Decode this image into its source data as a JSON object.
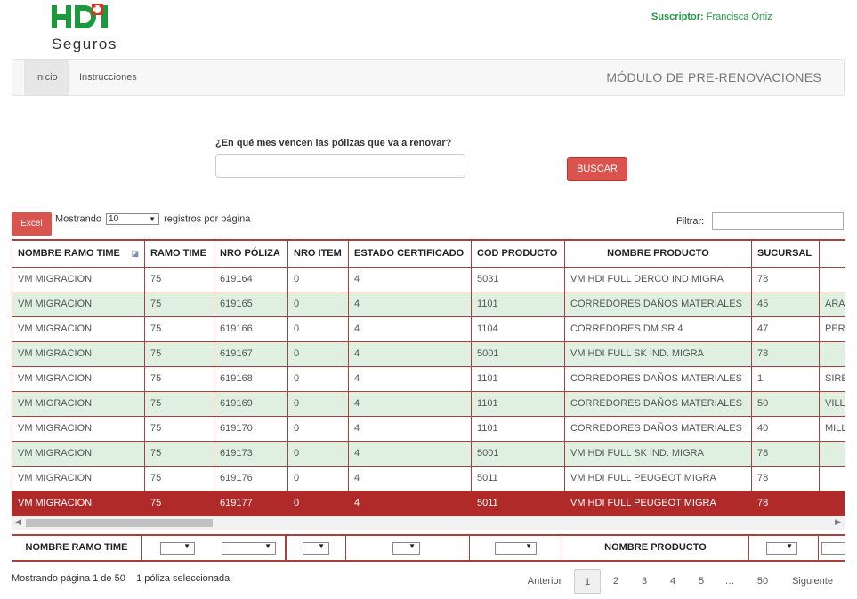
{
  "brand": {
    "logo_text": "HDI",
    "sub": "Seguros"
  },
  "subscriber": {
    "label": "Suscriptor:",
    "name": "Francisca Ortiz"
  },
  "nav": {
    "items": [
      {
        "label": "Inicio"
      },
      {
        "label": "Instrucciones"
      }
    ],
    "title": "MÓDULO DE PRE-RENOVACIONES"
  },
  "search": {
    "question": "¿En qué mes vencen las pólizas que va a renovar?",
    "value": "",
    "button": "BUSCAR"
  },
  "controls": {
    "excel": "Excel",
    "showing_pre": "Mostrando",
    "page_size": "10",
    "showing_post": "registros por página",
    "filter_label": "Filtrar:"
  },
  "table": {
    "columns": [
      "NOMBRE RAMO TIME",
      "RAMO TIME",
      "NRO PÓLIZA",
      "NRO ITEM",
      "ESTADO CERTIFICADO",
      "COD PRODUCTO",
      "NOMBRE PRODUCTO",
      "SUCURSAL",
      ""
    ],
    "rows": [
      [
        "VM MIGRACION",
        "75",
        "619164",
        "0",
        "4",
        "5031",
        "VM HDI FULL DERCO IND MIGRA",
        "78",
        ""
      ],
      [
        "VM MIGRACION",
        "75",
        "619165",
        "0",
        "4",
        "1101",
        "CORREDORES DAÑOS MATERIALES",
        "45",
        "ARA"
      ],
      [
        "VM MIGRACION",
        "75",
        "619166",
        "0",
        "4",
        "1104",
        "CORREDORES DM SR 4",
        "47",
        "PER"
      ],
      [
        "VM MIGRACION",
        "75",
        "619167",
        "0",
        "4",
        "5001",
        "VM HDI FULL SK IND. MIGRA",
        "78",
        ""
      ],
      [
        "VM MIGRACION",
        "75",
        "619168",
        "0",
        "4",
        "1101",
        "CORREDORES DAÑOS MATERIALES",
        "1",
        "SIRE"
      ],
      [
        "VM MIGRACION",
        "75",
        "619169",
        "0",
        "4",
        "1101",
        "CORREDORES DAÑOS MATERIALES",
        "50",
        "VILL"
      ],
      [
        "VM MIGRACION",
        "75",
        "619170",
        "0",
        "4",
        "1101",
        "CORREDORES DAÑOS MATERIALES",
        "40",
        "MILL"
      ],
      [
        "VM MIGRACION",
        "75",
        "619173",
        "0",
        "4",
        "5001",
        "VM HDI FULL SK IND. MIGRA",
        "78",
        ""
      ],
      [
        "VM MIGRACION",
        "75",
        "619176",
        "0",
        "4",
        "5011",
        "VM HDI FULL PEUGEOT MIGRA",
        "78",
        ""
      ],
      [
        "VM MIGRACION",
        "75",
        "619177",
        "0",
        "4",
        "5011",
        "VM HDI FULL PEUGEOT MIGRA",
        "78",
        ""
      ]
    ],
    "selected_row_index": 9
  },
  "footer_filters": {
    "col1": "NOMBRE RAMO TIME",
    "col7": "NOMBRE PRODUCTO"
  },
  "info": {
    "page_text": "Mostrando página 1 de 50",
    "selected_text": "1 póliza seleccionada"
  },
  "pagination": {
    "prev": "Anterior",
    "pages": [
      "1",
      "2",
      "3",
      "4",
      "5",
      "…",
      "50"
    ],
    "current": "1",
    "next": "Siguiente"
  },
  "colors": {
    "brand_green": "#1f9a3f",
    "accent_red": "#d9534f",
    "selected_row": "#b02a2a",
    "alt_row": "#dff0e0"
  }
}
